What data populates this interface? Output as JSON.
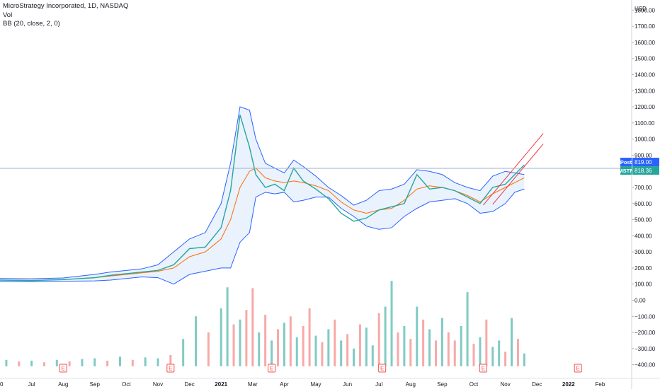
{
  "legend": {
    "title": "MicroStrategy Incorporated, 1D, NASDAQ",
    "vol": "Vol",
    "bb": "BB (20, close, 2, 0)"
  },
  "currency": "USD",
  "price_labels": {
    "post": {
      "name": "Post",
      "value": "819.00",
      "price": 819,
      "color": "#2962ff"
    },
    "mstr": {
      "name": "MSTR",
      "value": "818.36",
      "price": 818.36,
      "color": "#26a69a"
    }
  },
  "earnings_marker": "E",
  "colors": {
    "up": "#26a69a",
    "down": "#ef5350",
    "band": "#2962ff",
    "band_fill": "#e3effd",
    "basis": "#ff6d00",
    "channel": "#f23645",
    "vol_up": "#80cbc4",
    "vol_down": "#f7a9a7",
    "hline": "#9db2d6"
  },
  "chart_data": {
    "type": "line",
    "title": "MicroStrategy Incorporated, 1D, NASDAQ",
    "y_axis": {
      "ticks": [
        1800,
        1700,
        1600,
        1500,
        1400,
        1300,
        1200,
        1100,
        1000,
        900,
        800,
        700,
        600,
        500,
        400,
        300,
        200,
        100,
        0,
        -100,
        -200,
        -300,
        -400
      ],
      "tick_labels": [
        "1800.00",
        "1700.00",
        "1600.00",
        "1500.00",
        "1400.00",
        "1300.00",
        "1200.00",
        "1100.00",
        "1000.00",
        "900.00",
        "800.00",
        "700.00",
        "600.00",
        "500.00",
        "400.00",
        "300.00",
        "200.00",
        "100.00",
        "0.00",
        "−100.00",
        "−200.00",
        "−300.00",
        "−400.00"
      ],
      "range": [
        -450,
        1850
      ],
      "unit": "USD"
    },
    "x_axis": {
      "labels": [
        "0",
        "Jul",
        "Aug",
        "Sep",
        "Oct",
        "Nov",
        "Dec",
        "2021",
        "Mar",
        "Apr",
        "May",
        "Jun",
        "Jul",
        "Aug",
        "Sep",
        "Oct",
        "Nov",
        "Dec",
        "2022",
        "Feb"
      ],
      "bold": [
        "2021",
        "2022"
      ],
      "range": [
        0,
        20
      ]
    },
    "price_series": {
      "name": "MSTR",
      "x": [
        0,
        1,
        2,
        3,
        3.5,
        4,
        4.5,
        5,
        5.5,
        6,
        6.5,
        7,
        7.3,
        7.6,
        7.9,
        8.1,
        8.4,
        8.7,
        9,
        9.3,
        9.6,
        10,
        10.4,
        10.8,
        11.2,
        11.6,
        12,
        12.4,
        12.8,
        13.2,
        13.6,
        14,
        14.4,
        14.8,
        15.2,
        15.6,
        16,
        16.3,
        16.6
      ],
      "y": [
        125,
        122,
        128,
        140,
        155,
        165,
        175,
        185,
        220,
        320,
        330,
        450,
        680,
        1150,
        950,
        780,
        700,
        720,
        680,
        820,
        740,
        690,
        630,
        540,
        490,
        510,
        560,
        580,
        600,
        780,
        690,
        700,
        680,
        640,
        600,
        700,
        720,
        780,
        840
      ]
    },
    "bollinger": {
      "name": "BB (20, close, 2, 0)",
      "x": [
        0,
        1,
        2,
        3,
        3.5,
        4,
        4.5,
        5,
        5.5,
        6,
        6.5,
        7,
        7.3,
        7.6,
        7.9,
        8.1,
        8.4,
        8.7,
        9,
        9.3,
        9.6,
        10,
        10.4,
        10.8,
        11.2,
        11.6,
        12,
        12.4,
        12.8,
        13.2,
        13.6,
        14,
        14.4,
        14.8,
        15.2,
        15.6,
        16,
        16.3,
        16.6
      ],
      "upper": [
        135,
        133,
        138,
        160,
        175,
        185,
        195,
        220,
        300,
        380,
        420,
        600,
        850,
        1200,
        1180,
        1000,
        850,
        820,
        790,
        870,
        830,
        770,
        700,
        650,
        590,
        620,
        680,
        690,
        720,
        810,
        800,
        780,
        730,
        700,
        680,
        770,
        800,
        790,
        780
      ],
      "basis": [
        125,
        124,
        128,
        140,
        150,
        160,
        170,
        180,
        200,
        270,
        300,
        380,
        500,
        700,
        800,
        820,
        760,
        740,
        730,
        740,
        730,
        710,
        680,
        610,
        560,
        540,
        560,
        570,
        620,
        690,
        710,
        700,
        680,
        650,
        610,
        660,
        700,
        730,
        760
      ],
      "lower": [
        115,
        114,
        118,
        120,
        125,
        135,
        145,
        140,
        100,
        160,
        180,
        200,
        200,
        360,
        420,
        640,
        670,
        660,
        670,
        610,
        620,
        640,
        640,
        570,
        520,
        460,
        440,
        450,
        520,
        570,
        610,
        620,
        630,
        600,
        540,
        550,
        600,
        670,
        690
      ]
    },
    "channel": {
      "lines": [
        {
          "x": [
            15.3,
            17.2
          ],
          "y": [
            590,
            1035
          ]
        },
        {
          "x": [
            15.6,
            17.2
          ],
          "y": [
            595,
            970
          ]
        }
      ]
    },
    "volume_series": {
      "name": "Vol",
      "x": [
        0.2,
        0.6,
        1.0,
        1.4,
        1.8,
        2.2,
        2.6,
        3.0,
        3.4,
        3.8,
        4.2,
        4.6,
        5.0,
        5.4,
        5.8,
        6.2,
        6.6,
        7.0,
        7.2,
        7.4,
        7.6,
        7.8,
        8.0,
        8.2,
        8.4,
        8.6,
        8.8,
        9.0,
        9.2,
        9.4,
        9.6,
        9.8,
        10.0,
        10.2,
        10.4,
        10.6,
        10.8,
        11.0,
        11.2,
        11.4,
        11.6,
        11.8,
        12.0,
        12.2,
        12.4,
        12.6,
        12.8,
        13.0,
        13.2,
        13.4,
        13.6,
        13.8,
        14.0,
        14.2,
        14.4,
        14.6,
        14.8,
        15.0,
        15.2,
        15.4,
        15.6,
        15.8,
        16.0,
        16.2,
        16.4,
        16.6
      ],
      "y": [
        -370,
        -380,
        -375,
        -385,
        -370,
        -380,
        -365,
        -360,
        -375,
        -350,
        -370,
        -355,
        -360,
        -340,
        -240,
        -100,
        -200,
        -50,
        80,
        -150,
        -120,
        -60,
        75,
        -200,
        -90,
        -250,
        -180,
        -140,
        -100,
        -230,
        -160,
        -50,
        -220,
        -260,
        -180,
        -120,
        -250,
        -210,
        -300,
        -150,
        -170,
        -280,
        -80,
        -40,
        120,
        -200,
        -160,
        -240,
        -40,
        -120,
        -180,
        -250,
        -110,
        -200,
        -250,
        -160,
        50,
        -270,
        -230,
        -120,
        -290,
        -250,
        -320,
        -110,
        -240,
        -330
      ],
      "up": [
        true,
        false,
        true,
        false,
        true,
        false,
        true,
        true,
        false,
        true,
        false,
        true,
        true,
        false,
        true,
        true,
        false,
        true,
        true,
        false,
        true,
        false,
        false,
        true,
        false,
        true,
        false,
        true,
        false,
        true,
        false,
        false,
        true,
        false,
        true,
        false,
        true,
        false,
        true,
        false,
        true,
        true,
        false,
        true,
        true,
        false,
        true,
        false,
        true,
        false,
        true,
        false,
        true,
        false,
        false,
        true,
        true,
        false,
        true,
        false,
        true,
        true,
        false,
        true,
        false,
        true
      ]
    },
    "earnings_x": [
      2,
      5.4,
      8.6,
      12.1,
      15.3,
      18.3
    ]
  }
}
